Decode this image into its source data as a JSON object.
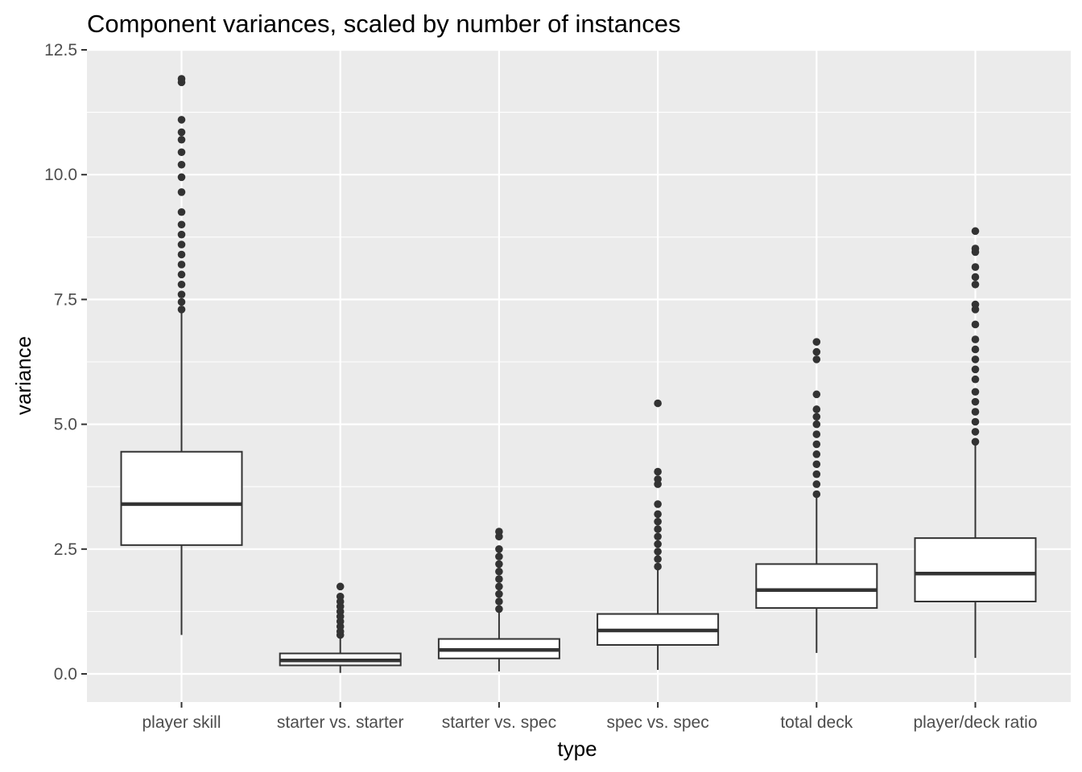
{
  "chart_data": {
    "type": "boxplot",
    "title": "Component variances, scaled by number of instances",
    "xlabel": "type",
    "ylabel": "variance",
    "ylim": [
      -0.55,
      12.5
    ],
    "yticks": [
      "0.0",
      "2.5",
      "5.0",
      "7.5",
      "10.0",
      "12.5"
    ],
    "ytick_values": [
      0,
      2.5,
      5,
      7.5,
      10,
      12.5
    ],
    "grid": true,
    "categories": [
      "player skill",
      "starter vs. starter",
      "starter vs. spec",
      "spec vs. spec",
      "total deck",
      "player/deck ratio"
    ],
    "boxes": [
      {
        "category": "player skill",
        "whisker_low": 0.78,
        "q1": 2.58,
        "median": 3.4,
        "q3": 4.45,
        "whisker_high": 7.25,
        "outliers": [
          7.3,
          7.45,
          7.6,
          7.8,
          8.0,
          8.2,
          8.4,
          8.6,
          8.8,
          9.0,
          9.25,
          9.65,
          9.95,
          10.2,
          10.45,
          10.7,
          10.85,
          11.1,
          11.85,
          11.92
        ]
      },
      {
        "category": "starter vs. starter",
        "whisker_low": 0.02,
        "q1": 0.17,
        "median": 0.27,
        "q3": 0.41,
        "whisker_high": 0.75,
        "outliers": [
          0.78,
          0.85,
          0.95,
          1.05,
          1.15,
          1.25,
          1.35,
          1.45,
          1.55,
          1.75
        ]
      },
      {
        "category": "starter vs. spec",
        "whisker_low": 0.05,
        "q1": 0.31,
        "median": 0.48,
        "q3": 0.7,
        "whisker_high": 1.25,
        "outliers": [
          1.3,
          1.45,
          1.6,
          1.75,
          1.9,
          2.05,
          2.2,
          2.35,
          2.5,
          2.75,
          2.85
        ]
      },
      {
        "category": "spec vs. spec",
        "whisker_low": 0.08,
        "q1": 0.58,
        "median": 0.87,
        "q3": 1.2,
        "whisker_high": 2.12,
        "outliers": [
          2.15,
          2.3,
          2.45,
          2.6,
          2.75,
          2.9,
          3.05,
          3.2,
          3.4,
          3.8,
          3.9,
          4.05,
          5.42
        ]
      },
      {
        "category": "total deck",
        "whisker_low": 0.42,
        "q1": 1.32,
        "median": 1.68,
        "q3": 2.2,
        "whisker_high": 3.55,
        "outliers": [
          3.6,
          3.8,
          4.0,
          4.2,
          4.4,
          4.6,
          4.8,
          5.0,
          5.15,
          5.3,
          5.6,
          6.3,
          6.45,
          6.65
        ]
      },
      {
        "category": "player/deck ratio",
        "whisker_low": 0.32,
        "q1": 1.45,
        "median": 2.01,
        "q3": 2.72,
        "whisker_high": 4.6,
        "outliers": [
          4.65,
          4.85,
          5.05,
          5.25,
          5.45,
          5.65,
          5.9,
          6.1,
          6.3,
          6.5,
          6.7,
          7.0,
          7.3,
          7.4,
          7.8,
          7.95,
          8.15,
          8.45,
          8.52,
          8.87
        ]
      }
    ],
    "colors": {
      "panel": "#ebebeb",
      "grid": "#ffffff",
      "box_fill": "#ffffff",
      "box_line": "#333333",
      "tick_text": "#4d4d4d"
    }
  }
}
